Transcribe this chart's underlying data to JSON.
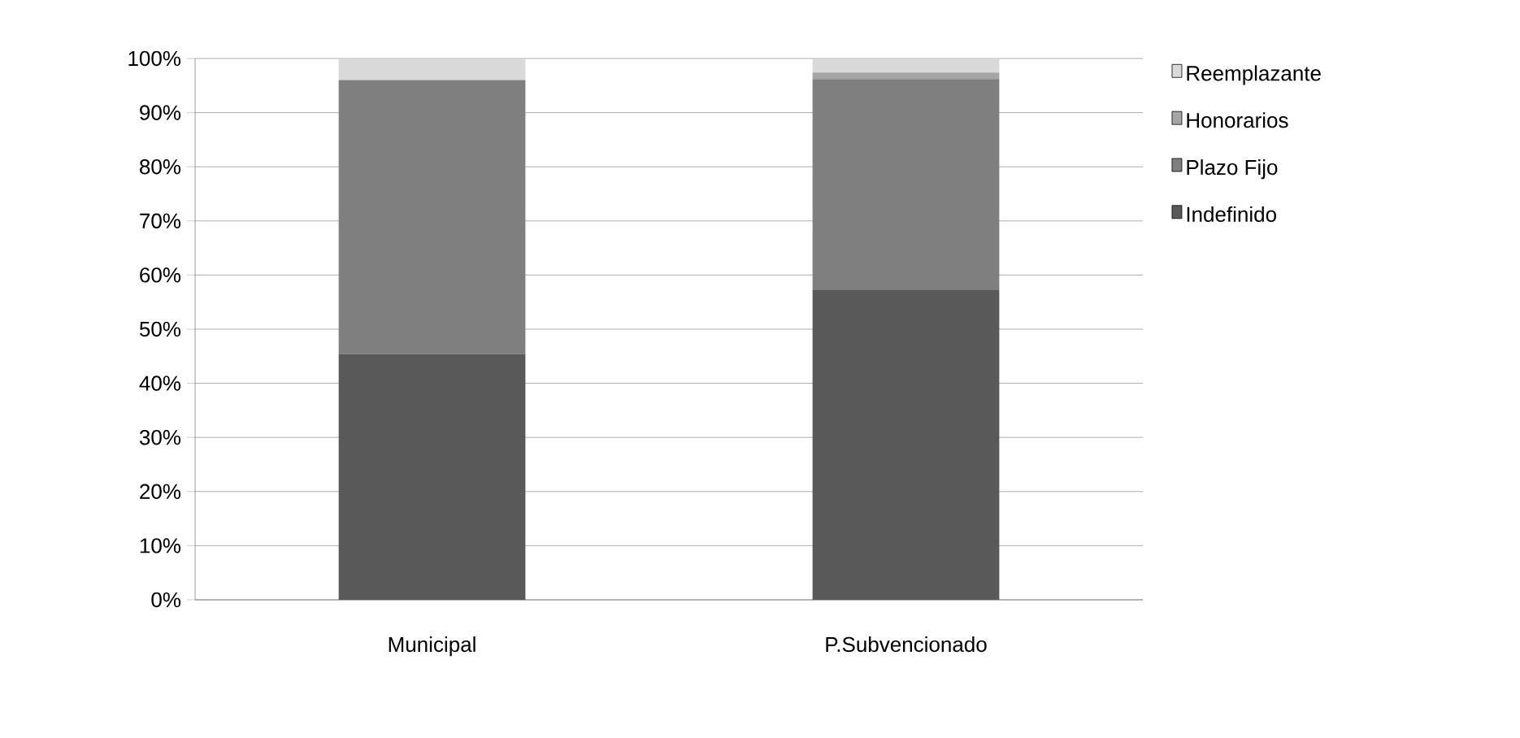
{
  "chart_data": {
    "type": "bar",
    "stacked": true,
    "categories": [
      "Municipal",
      "P.Subvencionado"
    ],
    "series": [
      {
        "name": "Indefinido",
        "color": "#595959",
        "values": [
          45.4,
          57.3
        ]
      },
      {
        "name": "Plazo Fijo",
        "color": "#7f7f7f",
        "values": [
          50.6,
          38.9
        ]
      },
      {
        "name": "Honorarios",
        "color": "#a5a5a5",
        "values": [
          0,
          1.2
        ]
      },
      {
        "name": "Reemplazante",
        "color": "#d9d9d9",
        "values": [
          4.0,
          2.6
        ]
      }
    ],
    "ylim": [
      0,
      100
    ],
    "yticks": [
      {
        "value": 0,
        "label": "0%"
      },
      {
        "value": 10,
        "label": "10%"
      },
      {
        "value": 20,
        "label": "20%"
      },
      {
        "value": 30,
        "label": "30%"
      },
      {
        "value": 40,
        "label": "40%"
      },
      {
        "value": 50,
        "label": "50%"
      },
      {
        "value": 60,
        "label": "60%"
      },
      {
        "value": 70,
        "label": "70%"
      },
      {
        "value": 80,
        "label": "80%"
      },
      {
        "value": 90,
        "label": "90%"
      },
      {
        "value": 100,
        "label": "100%"
      }
    ],
    "grid": "y",
    "legend": "right"
  }
}
